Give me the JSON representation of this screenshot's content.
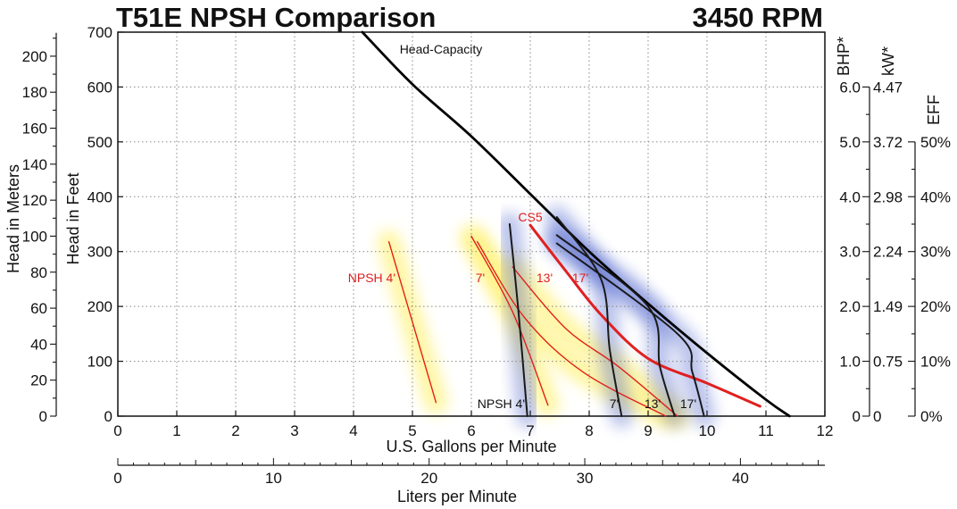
{
  "title": "T51E NPSH Comparison",
  "speed": "3450 RPM",
  "axes": {
    "x_gpm": {
      "label": "U.S. Gallons per Minute",
      "min": 0,
      "max": 12,
      "ticks": [
        "0",
        "1",
        "2",
        "3",
        "4",
        "5",
        "6",
        "7",
        "8",
        "9",
        "10",
        "11",
        "12"
      ]
    },
    "x_lpm": {
      "label": "Liters per Minute",
      "min": 0,
      "max": 45.4,
      "ticks": [
        "0",
        "10",
        "20",
        "30",
        "40"
      ]
    },
    "y_feet": {
      "label": "Head in Feet",
      "min": 0,
      "max": 700,
      "ticks": [
        "0",
        "100",
        "200",
        "300",
        "400",
        "500",
        "600",
        "700"
      ]
    },
    "y_meters": {
      "label": "Head in Meters",
      "ticks": [
        "0",
        "20",
        "40",
        "60",
        "80",
        "100",
        "120",
        "140",
        "160",
        "180",
        "200"
      ]
    },
    "bhp": {
      "label": "BHP*",
      "ticks": [
        "0",
        "1.0",
        "2.0",
        "3.0",
        "4.0",
        "5.0",
        "6.0"
      ]
    },
    "kw": {
      "label": "kW*",
      "ticks": [
        "0",
        "0.75",
        "1.49",
        "2.24",
        "2.98",
        "3.72",
        "4.47"
      ]
    },
    "eff": {
      "label": "EFF",
      "ticks": [
        "0%",
        "10%",
        "20%",
        "30%",
        "40%",
        "50%"
      ]
    }
  },
  "colors": {
    "head": "#000000",
    "cs5": "#e02020",
    "npsh_red": "#e02020",
    "npsh_dark": "#1a1a1a",
    "glow_blue": "#3a52c8",
    "glow_yellow": "#fff27a"
  },
  "chart_data": {
    "type": "line",
    "title": "T51E NPSH Comparison",
    "subtitle": "3450 RPM",
    "xlabel": "U.S. Gallons per Minute",
    "ylabel": "Head in Feet",
    "xlim": [
      0,
      12
    ],
    "ylim": [
      0,
      700
    ],
    "grid": true,
    "series": [
      {
        "name": "Head-Capacity",
        "label": "Head-Capacity",
        "style": "head",
        "x": [
          4.15,
          5.0,
          6.0,
          7.0,
          8.0,
          9.0,
          10.0,
          11.0,
          11.4
        ],
        "y": [
          700,
          605,
          510,
          405,
          300,
          205,
          115,
          30,
          0
        ]
      },
      {
        "name": "CS5",
        "label": "CS5",
        "style": "cs5",
        "x": [
          7.0,
          7.6,
          8.2,
          9.0,
          10.0,
          10.9
        ],
        "y": [
          348,
          265,
          185,
          105,
          60,
          18
        ]
      },
      {
        "name": "NPSH 4' (red)",
        "label": "NPSH 4'",
        "style": "npsh_red",
        "x": [
          4.6,
          4.95,
          5.4
        ],
        "y": [
          318,
          190,
          25
        ]
      },
      {
        "name": "7' (red)",
        "label": "7'",
        "style": "npsh_red",
        "x": [
          6.0,
          6.7,
          7.3
        ],
        "y": [
          328,
          190,
          20
        ]
      },
      {
        "name": "13' (red)",
        "label": "13'",
        "style": "npsh_red",
        "x": [
          6.1,
          6.9,
          7.9,
          9.3
        ],
        "y": [
          318,
          180,
          80,
          0
        ]
      },
      {
        "name": "17' (red)",
        "label": "17'",
        "style": "npsh_red",
        "x": [
          6.7,
          7.6,
          8.5,
          9.5
        ],
        "y": [
          272,
          160,
          90,
          0
        ]
      },
      {
        "name": "NPSH 4' (T51E)",
        "label": "NPSH 4'",
        "style": "npsh_dark",
        "x": [
          6.65,
          6.8,
          6.95
        ],
        "y": [
          350,
          190,
          0
        ]
      },
      {
        "name": "7' (T51E)",
        "label": "7'",
        "style": "npsh_dark",
        "x": [
          7.45,
          8.2,
          8.35,
          8.55
        ],
        "y": [
          363,
          250,
          120,
          0
        ]
      },
      {
        "name": "13' (T51E)",
        "label": "13'",
        "style": "npsh_dark",
        "x": [
          7.45,
          9.0,
          9.2,
          9.45
        ],
        "y": [
          330,
          200,
          90,
          0
        ]
      },
      {
        "name": "17' (T51E)",
        "label": "17'",
        "style": "npsh_dark",
        "x": [
          7.45,
          9.5,
          9.75,
          9.95
        ],
        "y": [
          315,
          150,
          80,
          0
        ]
      }
    ]
  }
}
